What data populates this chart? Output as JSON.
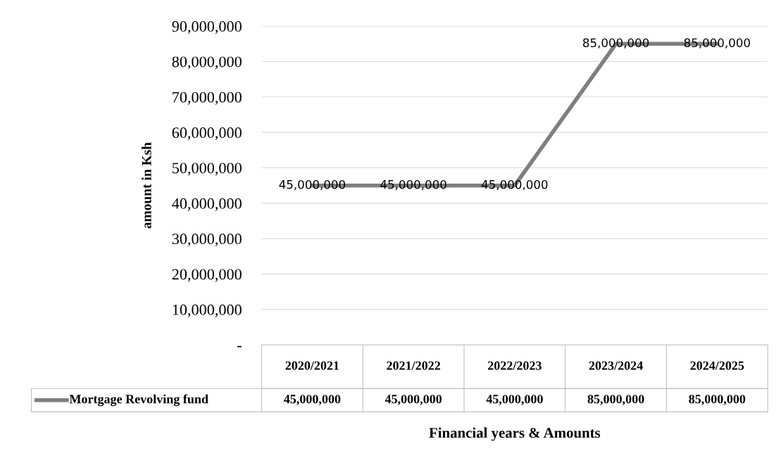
{
  "chart_data": {
    "type": "line",
    "xlabel": "Financial years & Amounts",
    "ylabel": "amount in Ksh",
    "categories": [
      "2020/2021",
      "2021/2022",
      "2022/2023",
      "2023/2024",
      "2024/2025"
    ],
    "series": [
      {
        "name": "Mortgage Revolving fund",
        "color": "#7f7f7f",
        "values": [
          45000000,
          45000000,
          45000000,
          85000000,
          85000000
        ],
        "value_labels": [
          "45,000,000",
          "45,000,000",
          "45,000,000",
          "85,000,000",
          "85,000,000"
        ]
      }
    ],
    "ylim": [
      0,
      90000000
    ],
    "yticks": [
      {
        "value": 0,
        "label": "-"
      },
      {
        "value": 10000000,
        "label": "10,000,000"
      },
      {
        "value": 20000000,
        "label": "20,000,000"
      },
      {
        "value": 30000000,
        "label": "30,000,000"
      },
      {
        "value": 40000000,
        "label": "40,000,000"
      },
      {
        "value": 50000000,
        "label": "50,000,000"
      },
      {
        "value": 60000000,
        "label": "60,000,000"
      },
      {
        "value": 70000000,
        "label": "70,000,000"
      },
      {
        "value": 80000000,
        "label": "80,000,000"
      },
      {
        "value": 90000000,
        "label": "90,000,000"
      }
    ],
    "grid": "y",
    "legend": "bottom left",
    "marker": "none",
    "line_style": "solid"
  }
}
